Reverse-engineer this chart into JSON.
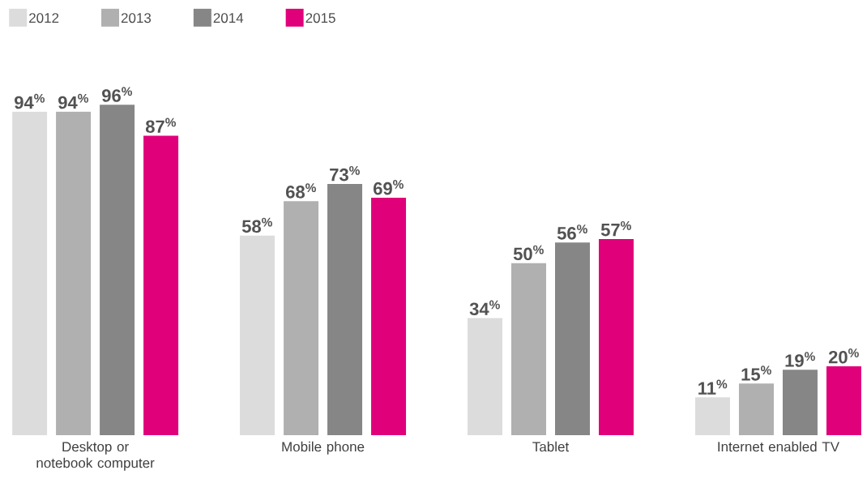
{
  "chart_data": {
    "type": "bar",
    "categories": [
      "Desktop or notebook computer",
      "Mobile phone",
      "Tablet",
      "Internet enabled TV"
    ],
    "series": [
      {
        "name": "2012",
        "color": "#dcdcdc",
        "values": [
          94,
          58,
          34,
          11
        ],
        "value_labels": [
          "94$^{%}$",
          "58$^{%}$",
          "34$^{%}$",
          "11$^{%}$"
        ]
      },
      {
        "name": "2013",
        "color": "#b0b0b0",
        "values": [
          94,
          68,
          50,
          15
        ],
        "value_labels": [
          "94$^{%}$",
          "68$^{%}$",
          "50$^{%}$",
          "15$^{%}$"
        ]
      },
      {
        "name": "2014",
        "color": "#868686",
        "values": [
          96,
          73,
          56,
          19
        ],
        "value_labels": [
          "96$^{%}$",
          "73$^{%}$",
          "56$^{%}$",
          "19$^{%}$"
        ]
      },
      {
        "name": "2015",
        "color": "#e0007a",
        "values": [
          87,
          69,
          57,
          20
        ],
        "value_labels": [
          "87$^{%}$",
          "69$^{%}$",
          "57$^{%}$",
          "20$^{%}$"
        ]
      }
    ],
    "legend": "top left"
  }
}
